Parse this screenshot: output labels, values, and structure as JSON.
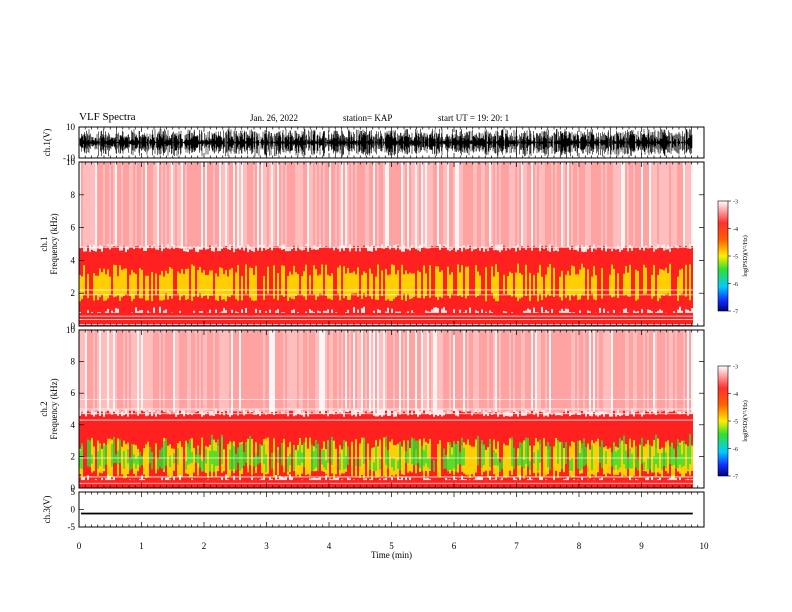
{
  "header": {
    "title": "VLF Spectra",
    "date": "Jan. 26, 2022",
    "station": "station= KAP",
    "start": "start  UT  =    19: 20: 1"
  },
  "chart_data": [
    {
      "type": "line",
      "panel": "ch1-waveform",
      "ylabel": "ch.1(V)",
      "ylim": [
        -10,
        10
      ],
      "y_ticks": [
        "10",
        "-10"
      ],
      "xlim": [
        0,
        10
      ],
      "note_amplitude_envelope": [
        -9,
        9
      ],
      "data_extent_min": 9.82
    },
    {
      "type": "heatmap",
      "panel": "ch1-spectrogram",
      "ylabel_line1": "ch.1",
      "ylabel_line2": "Frequency (kHz)",
      "ylim": [
        0,
        10
      ],
      "y_ticks": [
        "0",
        "2",
        "4",
        "6",
        "8",
        "10"
      ],
      "xlim": [
        0,
        10
      ],
      "data_extent_min": 9.82,
      "colorbar": {
        "label": "log(PSD)(V²/Hz)",
        "ticks": [
          "-3",
          "-4",
          "-5",
          "-6",
          "-7"
        ],
        "range": [
          -7,
          -3
        ]
      },
      "band_structure_khz": {
        "strong_band": [
          0.8,
          4.5
        ],
        "enhanced_band": [
          1.5,
          3.8
        ],
        "upper_limit": 10
      }
    },
    {
      "type": "heatmap",
      "panel": "ch2-spectrogram",
      "ylabel_line1": "ch.2",
      "ylabel_line2": "Frequency (kHz)",
      "ylim": [
        0,
        10
      ],
      "y_ticks": [
        "0",
        "2",
        "4",
        "6",
        "8",
        "10"
      ],
      "xlim": [
        0,
        10
      ],
      "data_extent_min": 9.82,
      "colorbar": {
        "label": "log(PSD)(V²/Hz)",
        "ticks": [
          "-3",
          "-4",
          "-5",
          "-6",
          "-7"
        ],
        "range": [
          -7,
          -3
        ]
      },
      "band_structure_khz": {
        "strong_band": [
          0.5,
          4.5
        ],
        "enhanced_band": [
          0.6,
          3.2
        ],
        "upper_limit": 10
      }
    },
    {
      "type": "line",
      "panel": "ch3-waveform",
      "ylabel": "ch.3(V)",
      "ylim": [
        -5,
        5
      ],
      "y_ticks": [
        "5",
        "0",
        "-5"
      ],
      "xlim": [
        0,
        10
      ],
      "xlabel": "Time (min)",
      "x_ticks": [
        "0",
        "1",
        "2",
        "3",
        "4",
        "5",
        "6",
        "7",
        "8",
        "9",
        "10"
      ],
      "note_amplitude_envelope": [
        -1.4,
        -0.9
      ],
      "data_extent_min": 9.82
    }
  ],
  "colors": {
    "background": "#ffffff",
    "trace": "#000000",
    "psd_high": "#ff2020",
    "psd_mid": "#ffee00",
    "psd_low": "#30e030"
  }
}
